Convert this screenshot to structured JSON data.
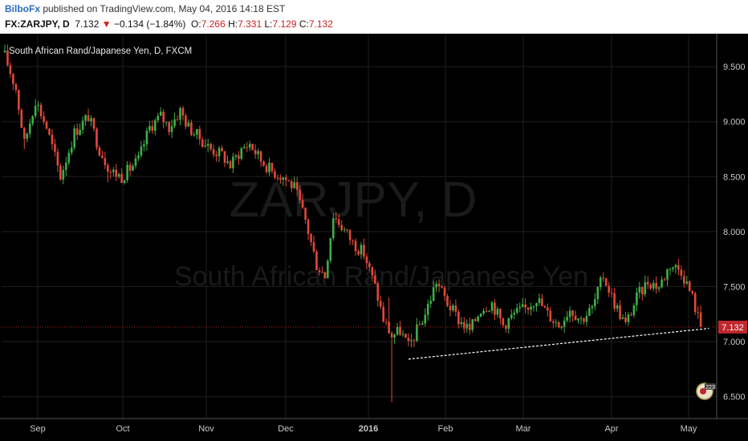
{
  "publisher": {
    "author": "BilboFx",
    "text": " published on TradingView.com, May 04, 2016 14:18 EST"
  },
  "quote": {
    "symbol": "FX:ZARJPY, D",
    "last": "7.132",
    "arrow": "▼",
    "change": "−0.134 (−1.84%)",
    "o_label": "O:",
    "o": "7.266",
    "h_label": "H:",
    "h": "7.331",
    "l_label": "L:",
    "l": "7.129",
    "c_label": "C:",
    "c": "7.132"
  },
  "chart_data": {
    "type": "candlestick",
    "title": "South African Rand/Japanese Yen, D, FXCM",
    "watermark_symbol": "ZARJPY, D",
    "watermark_name": "South African Rand/Japanese Yen",
    "y_ticks": [
      9.5,
      9.0,
      8.5,
      8.0,
      7.5,
      7.0,
      6.5
    ],
    "y_tick_labels": [
      "9.500",
      "9.000",
      "8.500",
      "8.000",
      "7.500",
      "7.000",
      "6.500"
    ],
    "ylim": [
      6.3,
      9.8
    ],
    "x_labels": [
      "Sep",
      "Oct",
      "Nov",
      "Dec",
      "2016",
      "Feb",
      "Mar",
      "Apr",
      "May"
    ],
    "last_price_label": "7.132",
    "last_price": 7.132,
    "close_path": [
      [
        0,
        9.6
      ],
      [
        4,
        9.3
      ],
      [
        7,
        8.8
      ],
      [
        11,
        9.2
      ],
      [
        15,
        8.95
      ],
      [
        20,
        8.5
      ],
      [
        25,
        8.9
      ],
      [
        30,
        9.05
      ],
      [
        34,
        8.75
      ],
      [
        38,
        8.55
      ],
      [
        42,
        8.5
      ],
      [
        48,
        8.65
      ],
      [
        52,
        8.95
      ],
      [
        56,
        9.05
      ],
      [
        59,
        8.95
      ],
      [
        63,
        9.1
      ],
      [
        66,
        8.95
      ],
      [
        70,
        8.85
      ],
      [
        74,
        8.75
      ],
      [
        78,
        8.7
      ],
      [
        81,
        8.6
      ],
      [
        85,
        8.75
      ],
      [
        88,
        8.8
      ],
      [
        92,
        8.65
      ],
      [
        96,
        8.55
      ],
      [
        100,
        8.5
      ],
      [
        104,
        8.4
      ],
      [
        108,
        8.1
      ],
      [
        112,
        7.7
      ],
      [
        115,
        7.6
      ],
      [
        118,
        8.15
      ],
      [
        121,
        8.05
      ],
      [
        125,
        7.9
      ],
      [
        129,
        7.8
      ],
      [
        133,
        7.5
      ],
      [
        136,
        7.2
      ],
      [
        139,
        7.05
      ],
      [
        142,
        7.1
      ],
      [
        145,
        6.95
      ],
      [
        148,
        7.1
      ],
      [
        151,
        7.25
      ],
      [
        155,
        7.55
      ],
      [
        159,
        7.35
      ],
      [
        163,
        7.2
      ],
      [
        167,
        7.1
      ],
      [
        171,
        7.3
      ],
      [
        175,
        7.35
      ],
      [
        179,
        7.15
      ],
      [
        183,
        7.25
      ],
      [
        187,
        7.3
      ],
      [
        191,
        7.4
      ],
      [
        195,
        7.25
      ],
      [
        199,
        7.15
      ],
      [
        203,
        7.3
      ],
      [
        207,
        7.2
      ],
      [
        211,
        7.3
      ],
      [
        215,
        7.6
      ],
      [
        219,
        7.35
      ],
      [
        223,
        7.15
      ],
      [
        227,
        7.4
      ],
      [
        231,
        7.55
      ],
      [
        235,
        7.5
      ],
      [
        239,
        7.7
      ],
      [
        243,
        7.65
      ],
      [
        247,
        7.4
      ],
      [
        250,
        7.132
      ]
    ],
    "extra_wicks": [
      {
        "i": 7,
        "low": 8.75
      },
      {
        "i": 37,
        "low": 8.45
      },
      {
        "i": 138,
        "high": 7.4
      },
      {
        "i": 139,
        "low": 6.45
      }
    ],
    "trendline": {
      "start": [
        145,
        6.84
      ],
      "end": [
        253,
        7.12
      ]
    },
    "colors": {
      "up": "#3fae49",
      "down": "#e0493a",
      "background": "#000000",
      "grid": "#1f1f1f",
      "trendline": "#ffffff",
      "price_line": "#b22222",
      "price_label_bg": "#c0272d"
    }
  }
}
